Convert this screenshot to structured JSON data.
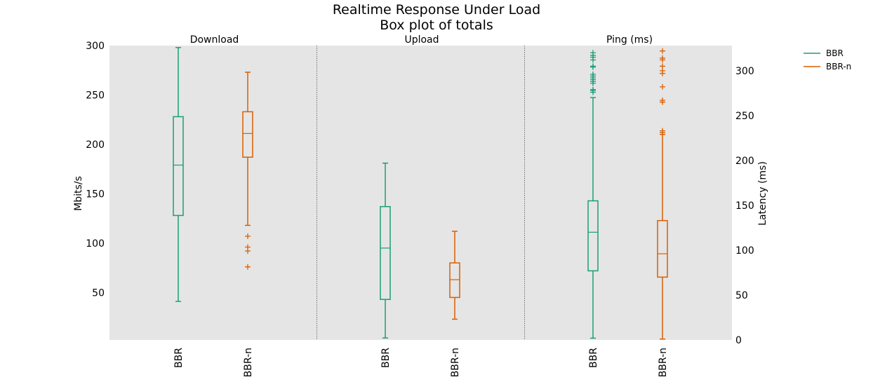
{
  "chart_data": {
    "type": "box",
    "title": "Realtime Response Under Load",
    "subtitle": "Box plot of totals",
    "legend": {
      "placement": "top-right-outside",
      "entries": [
        {
          "name": "BBR",
          "color": "#1b9e77"
        },
        {
          "name": "BBR-n",
          "color": "#d95f02"
        }
      ]
    },
    "axes": {
      "left": {
        "label": "Mbits/s",
        "range": [
          2,
          300
        ],
        "ticks": [
          50,
          100,
          150,
          200,
          250,
          300
        ]
      },
      "right": {
        "label": "Latency (ms)",
        "range": [
          0,
          328
        ],
        "ticks": [
          0,
          50,
          100,
          150,
          200,
          250,
          300
        ]
      }
    },
    "grid": false,
    "panels": [
      {
        "name": "Download",
        "axis": "left",
        "categories": [
          "BBR",
          "BBR-n"
        ],
        "boxes": [
          {
            "series": "BBR",
            "color": "#1b9e77",
            "whisker_low": 41,
            "q1": 128,
            "median": 179,
            "q3": 228,
            "whisker_high": 298,
            "outliers": []
          },
          {
            "series": "BBR-n",
            "color": "#d95f02",
            "whisker_low": 118,
            "q1": 187,
            "median": 211,
            "q3": 233,
            "whisker_high": 273,
            "outliers": [
              76,
              92,
              96,
              107
            ]
          }
        ]
      },
      {
        "name": "Upload",
        "axis": "left",
        "categories": [
          "BBR",
          "BBR-n"
        ],
        "boxes": [
          {
            "series": "BBR",
            "color": "#1b9e77",
            "whisker_low": 4,
            "q1": 43,
            "median": 95,
            "q3": 137,
            "whisker_high": 181,
            "outliers": []
          },
          {
            "series": "BBR-n",
            "color": "#d95f02",
            "whisker_low": 23,
            "q1": 45,
            "median": 63,
            "q3": 80,
            "whisker_high": 112,
            "outliers": []
          }
        ]
      },
      {
        "name": "Ping (ms)",
        "axis": "right",
        "categories": [
          "BBR",
          "BBR-n"
        ],
        "boxes": [
          {
            "series": "BBR",
            "color": "#1b9e77",
            "whisker_low": 2,
            "q1": 77,
            "median": 120,
            "q3": 155,
            "whisker_high": 270,
            "outliers": [
              276,
              278,
              279,
              286,
              288,
              290,
              292,
              294,
              296,
              304,
              305,
              312,
              315,
              317,
              320
            ]
          },
          {
            "series": "BBR-n",
            "color": "#d95f02",
            "whisker_low": 1,
            "q1": 70,
            "median": 96,
            "q3": 133,
            "whisker_high": 229,
            "outliers": [
              231,
              233,
              265,
              267,
              282,
              297,
              300,
              305,
              312,
              314,
              322
            ]
          }
        ]
      }
    ]
  }
}
